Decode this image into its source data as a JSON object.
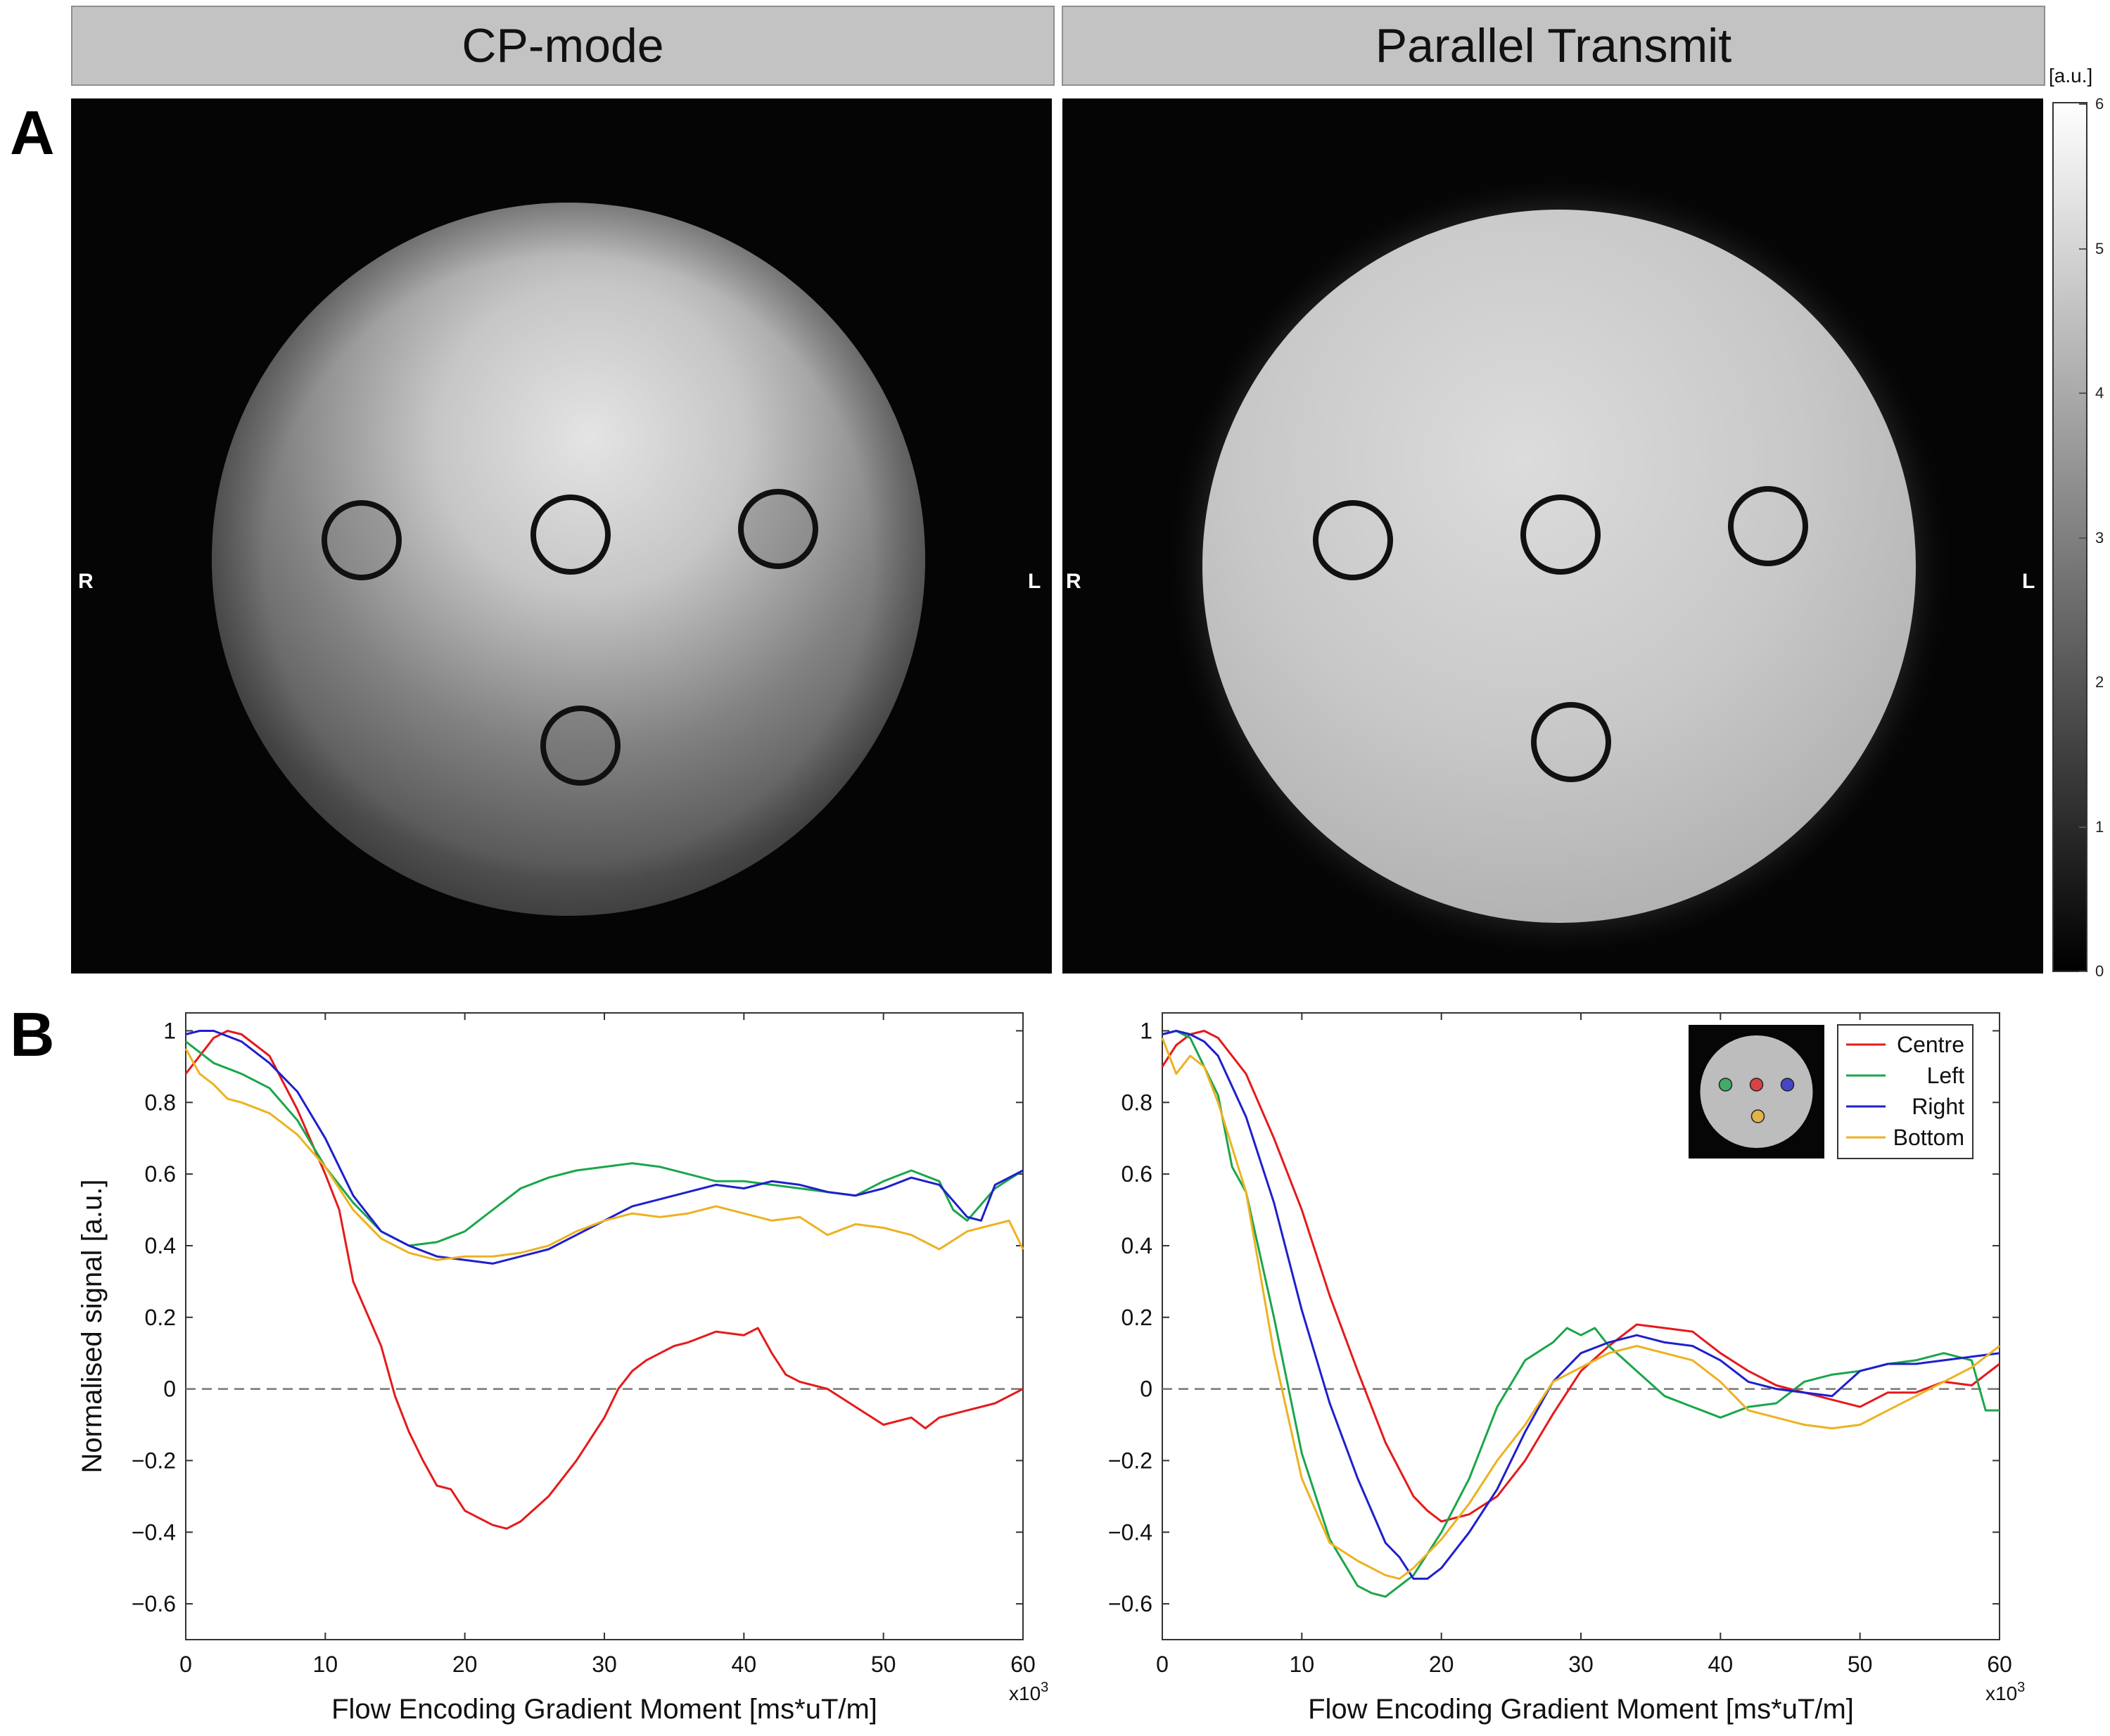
{
  "headers": {
    "left": "CP-mode",
    "right": "Parallel Transmit"
  },
  "panel_labels": {
    "a": "A",
    "b": "B"
  },
  "orientation": {
    "right_side": "R",
    "left_side": "L"
  },
  "colorbar": {
    "unit": "[a.u.]",
    "ticks": [
      "6",
      "5",
      "4",
      "3",
      "2",
      "1",
      "0"
    ]
  },
  "legend": {
    "entries": [
      {
        "name": "Centre",
        "color": "#e41a1c"
      },
      {
        "name": "Left",
        "color": "#1aa64a"
      },
      {
        "name": "Right",
        "color": "#1f1fcc"
      },
      {
        "name": "Bottom",
        "color": "#edb220"
      }
    ]
  },
  "chart_data": [
    {
      "type": "line",
      "xlabel": "Flow Encoding Gradient Moment [ms*uT/m]",
      "ylabel": "Normalised signal [a.u.]",
      "x_multiplier": "x10",
      "x_exponent": "3",
      "xlim": [
        0,
        60
      ],
      "ylim": [
        -0.7,
        1.05
      ],
      "xticks": [
        0,
        10,
        20,
        30,
        40,
        50,
        60
      ],
      "yticks": [
        1,
        0.8,
        0.6,
        0.4,
        0.2,
        0,
        -0.2,
        -0.4,
        -0.6
      ],
      "ytick_labels": [
        "1",
        "0.8",
        "0.6",
        "0.4",
        "0.2",
        "0",
        "−0.2",
        "−0.4",
        "−0.6"
      ],
      "reference_line": 0,
      "series": [
        {
          "name": "Centre",
          "color": "#e41a1c",
          "x": [
            0,
            2,
            3,
            4,
            6,
            8,
            10,
            11,
            12,
            14,
            15,
            16,
            17,
            18,
            19,
            20,
            22,
            23,
            24,
            26,
            28,
            30,
            31,
            32,
            33,
            34,
            35,
            36,
            38,
            40,
            41,
            42,
            43,
            44,
            46,
            48,
            50,
            52,
            53,
            54,
            56,
            58,
            60
          ],
          "y": [
            0.88,
            0.98,
            1.0,
            0.99,
            0.93,
            0.78,
            0.6,
            0.5,
            0.3,
            0.12,
            -0.02,
            -0.12,
            -0.2,
            -0.27,
            -0.28,
            -0.34,
            -0.38,
            -0.39,
            -0.37,
            -0.3,
            -0.2,
            -0.08,
            0.0,
            0.05,
            0.08,
            0.1,
            0.12,
            0.13,
            0.16,
            0.15,
            0.17,
            0.1,
            0.04,
            0.02,
            0.0,
            -0.05,
            -0.1,
            -0.08,
            -0.11,
            -0.08,
            -0.06,
            -0.04,
            0.0
          ]
        },
        {
          "name": "Left",
          "color": "#1aa64a",
          "x": [
            0,
            2,
            4,
            6,
            8,
            10,
            12,
            14,
            16,
            18,
            20,
            22,
            24,
            26,
            28,
            30,
            32,
            34,
            36,
            38,
            40,
            42,
            44,
            46,
            48,
            50,
            52,
            54,
            55,
            56,
            58,
            60
          ],
          "y": [
            0.97,
            0.91,
            0.88,
            0.84,
            0.75,
            0.62,
            0.52,
            0.44,
            0.4,
            0.41,
            0.44,
            0.5,
            0.56,
            0.59,
            0.61,
            0.62,
            0.63,
            0.62,
            0.6,
            0.58,
            0.58,
            0.57,
            0.56,
            0.55,
            0.54,
            0.58,
            0.61,
            0.58,
            0.5,
            0.47,
            0.56,
            0.61
          ]
        },
        {
          "name": "Right",
          "color": "#1f1fcc",
          "x": [
            0,
            1,
            2,
            4,
            6,
            8,
            10,
            12,
            14,
            16,
            18,
            20,
            22,
            24,
            26,
            28,
            30,
            32,
            34,
            36,
            38,
            40,
            42,
            44,
            46,
            48,
            50,
            52,
            54,
            56,
            57,
            58,
            60
          ],
          "y": [
            0.99,
            1.0,
            1.0,
            0.97,
            0.91,
            0.83,
            0.7,
            0.54,
            0.44,
            0.4,
            0.37,
            0.36,
            0.35,
            0.37,
            0.39,
            0.43,
            0.47,
            0.51,
            0.53,
            0.55,
            0.57,
            0.56,
            0.58,
            0.57,
            0.55,
            0.54,
            0.56,
            0.59,
            0.57,
            0.48,
            0.47,
            0.57,
            0.61
          ]
        },
        {
          "name": "Bottom",
          "color": "#edb220",
          "x": [
            0,
            1,
            2,
            3,
            4,
            6,
            8,
            10,
            12,
            14,
            16,
            18,
            20,
            22,
            24,
            26,
            28,
            30,
            32,
            34,
            36,
            38,
            40,
            42,
            44,
            46,
            48,
            50,
            52,
            54,
            56,
            58,
            59,
            60
          ],
          "y": [
            0.95,
            0.88,
            0.85,
            0.81,
            0.8,
            0.77,
            0.71,
            0.62,
            0.5,
            0.42,
            0.38,
            0.36,
            0.37,
            0.37,
            0.38,
            0.4,
            0.44,
            0.47,
            0.49,
            0.48,
            0.49,
            0.51,
            0.49,
            0.47,
            0.48,
            0.43,
            0.46,
            0.45,
            0.43,
            0.39,
            0.44,
            0.46,
            0.47,
            0.39
          ]
        }
      ]
    },
    {
      "type": "line",
      "xlabel": "Flow Encoding Gradient Moment [ms*uT/m]",
      "ylabel": "",
      "x_multiplier": "x10",
      "x_exponent": "3",
      "xlim": [
        0,
        60
      ],
      "ylim": [
        -0.7,
        1.05
      ],
      "xticks": [
        0,
        10,
        20,
        30,
        40,
        50,
        60
      ],
      "yticks": [
        1,
        0.8,
        0.6,
        0.4,
        0.2,
        0,
        -0.2,
        -0.4,
        -0.6
      ],
      "ytick_labels": [
        "1",
        "0.8",
        "0.6",
        "0.4",
        "0.2",
        "0",
        "−0.2",
        "−0.4",
        "−0.6"
      ],
      "reference_line": 0,
      "inset": "phantom-thumbnail",
      "series": [
        {
          "name": "Centre",
          "color": "#e41a1c",
          "x": [
            0,
            1,
            2,
            3,
            4,
            6,
            8,
            10,
            12,
            14,
            16,
            18,
            19,
            20,
            22,
            24,
            26,
            28,
            30,
            32,
            34,
            36,
            38,
            40,
            42,
            44,
            46,
            48,
            50,
            52,
            54,
            56,
            58,
            60
          ],
          "y": [
            0.9,
            0.96,
            0.99,
            1.0,
            0.98,
            0.88,
            0.7,
            0.5,
            0.26,
            0.05,
            -0.15,
            -0.3,
            -0.34,
            -0.37,
            -0.35,
            -0.3,
            -0.2,
            -0.07,
            0.05,
            0.12,
            0.18,
            0.17,
            0.16,
            0.1,
            0.05,
            0.01,
            -0.01,
            -0.03,
            -0.05,
            -0.01,
            -0.01,
            0.02,
            0.01,
            0.07
          ]
        },
        {
          "name": "Left",
          "color": "#1aa64a",
          "x": [
            0,
            1,
            2,
            4,
            5,
            6,
            8,
            10,
            12,
            14,
            15,
            16,
            18,
            20,
            22,
            24,
            26,
            28,
            29,
            30,
            31,
            32,
            34,
            36,
            38,
            40,
            42,
            44,
            46,
            48,
            50,
            52,
            54,
            56,
            58,
            59,
            60
          ],
          "y": [
            0.99,
            1.0,
            0.98,
            0.82,
            0.62,
            0.55,
            0.2,
            -0.18,
            -0.42,
            -0.55,
            -0.57,
            -0.58,
            -0.52,
            -0.4,
            -0.25,
            -0.05,
            0.08,
            0.13,
            0.17,
            0.15,
            0.17,
            0.12,
            0.05,
            -0.02,
            -0.05,
            -0.08,
            -0.05,
            -0.04,
            0.02,
            0.04,
            0.05,
            0.07,
            0.08,
            0.1,
            0.08,
            -0.06,
            -0.06
          ]
        },
        {
          "name": "Right",
          "color": "#1f1fcc",
          "x": [
            0,
            1,
            2,
            3,
            4,
            6,
            8,
            10,
            12,
            14,
            16,
            17,
            18,
            19,
            20,
            22,
            24,
            26,
            28,
            30,
            32,
            34,
            36,
            38,
            40,
            42,
            44,
            46,
            48,
            50,
            52,
            54,
            56,
            58,
            60
          ],
          "y": [
            0.99,
            1.0,
            0.99,
            0.97,
            0.93,
            0.76,
            0.52,
            0.22,
            -0.04,
            -0.25,
            -0.43,
            -0.47,
            -0.53,
            -0.53,
            -0.5,
            -0.4,
            -0.28,
            -0.12,
            0.02,
            0.1,
            0.13,
            0.15,
            0.13,
            0.12,
            0.08,
            0.02,
            0.0,
            -0.01,
            -0.02,
            0.05,
            0.07,
            0.07,
            0.08,
            0.09,
            0.1
          ]
        },
        {
          "name": "Bottom",
          "color": "#edb220",
          "x": [
            0,
            1,
            2,
            3,
            4,
            6,
            8,
            10,
            12,
            14,
            16,
            17,
            18,
            20,
            22,
            24,
            26,
            28,
            30,
            32,
            34,
            36,
            38,
            40,
            42,
            44,
            46,
            48,
            50,
            52,
            54,
            56,
            58,
            60
          ],
          "y": [
            0.98,
            0.88,
            0.93,
            0.9,
            0.8,
            0.55,
            0.1,
            -0.25,
            -0.43,
            -0.48,
            -0.52,
            -0.53,
            -0.5,
            -0.42,
            -0.32,
            -0.2,
            -0.1,
            0.02,
            0.06,
            0.1,
            0.12,
            0.1,
            0.08,
            0.02,
            -0.06,
            -0.08,
            -0.1,
            -0.11,
            -0.1,
            -0.06,
            -0.02,
            0.02,
            0.06,
            0.12
          ]
        }
      ]
    }
  ]
}
